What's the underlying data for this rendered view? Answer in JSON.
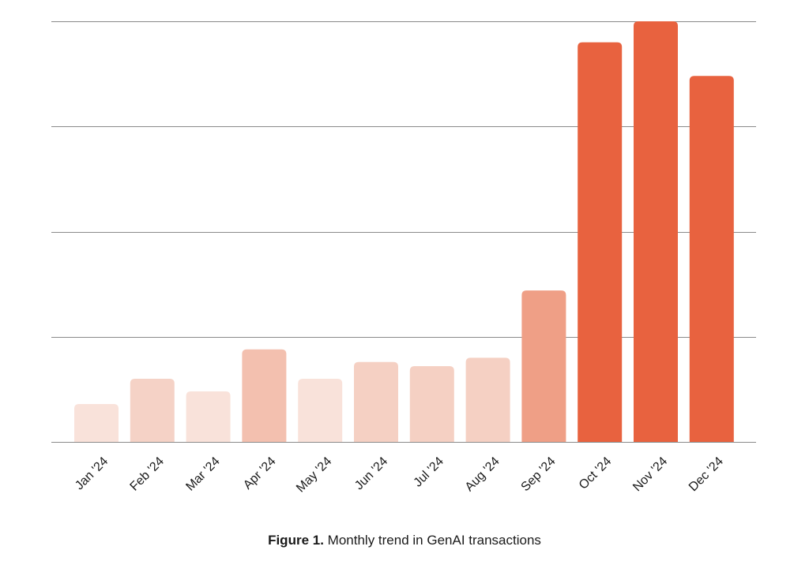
{
  "chart_data": {
    "type": "bar",
    "title": "",
    "xlabel": "",
    "ylabel": "",
    "ylim": [
      0,
      100
    ],
    "grid": true,
    "gridlines": [
      0,
      25,
      50,
      75,
      100
    ],
    "categories": [
      "Jan '24",
      "Feb '24",
      "Mar '24",
      "Apr '24",
      "May '24",
      "Jun '24",
      "Jul '24",
      "Aug '24",
      "Sep '24",
      "Oct '24",
      "Nov '24",
      "Dec '24"
    ],
    "values": [
      9,
      15,
      12,
      22,
      15,
      19,
      18,
      20,
      36,
      95,
      100,
      87
    ],
    "colors": [
      "#f9e2da",
      "#f5d2c6",
      "#f9e2da",
      "#f3c0af",
      "#f9e2da",
      "#f5d0c3",
      "#f5d0c3",
      "#f5d0c3",
      "#ef9f86",
      "#e8623f",
      "#e8623f",
      "#e8623f"
    ]
  },
  "caption": {
    "label": "Figure 1.",
    "text": "Monthly trend in GenAI transactions"
  }
}
